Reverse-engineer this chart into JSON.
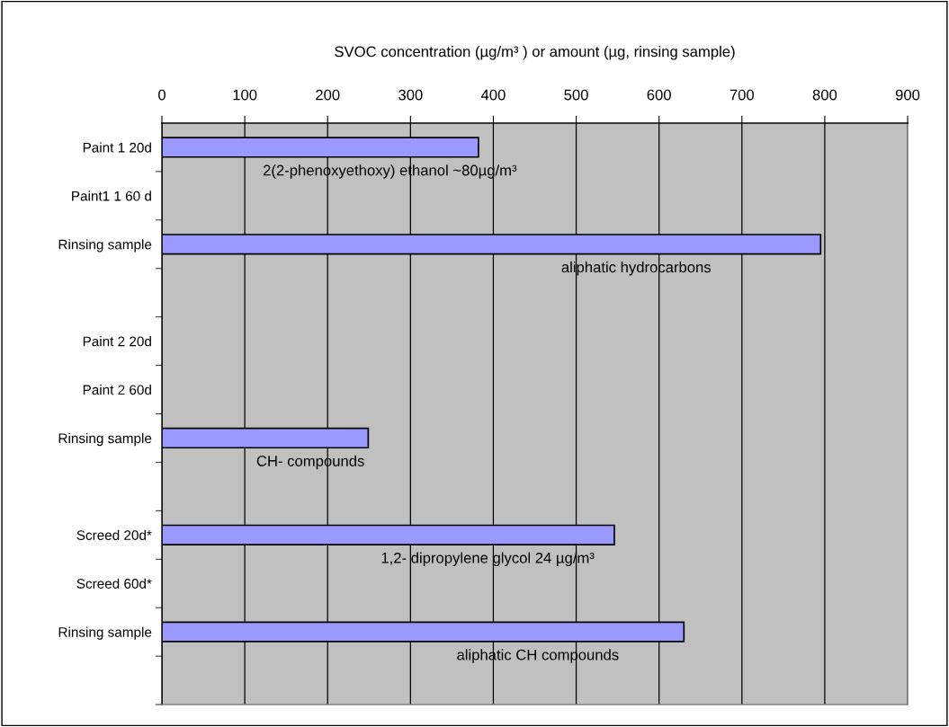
{
  "chart_data": {
    "type": "bar",
    "orientation": "horizontal",
    "xlabel": "SVOC concentration (µg/m³ ) or amount (µg, rinsing sample)",
    "categories": [
      "Paint 1 20d",
      "Paint1 1 60 d",
      "Rinsing sample",
      null,
      "Paint 2 20d",
      "Paint 2 60d",
      "Rinsing sample",
      null,
      "Screed 20d*",
      "Screed 60d*",
      "Rinsing sample",
      null
    ],
    "values": [
      382,
      null,
      795,
      null,
      null,
      null,
      249,
      null,
      546,
      null,
      630,
      null
    ],
    "color": "#9999ff",
    "xlim": [
      0,
      900
    ],
    "xticks": [
      0,
      100,
      200,
      300,
      400,
      500,
      600,
      700,
      800,
      900
    ],
    "grid": "x",
    "annotations": [
      "2(2-phenoxyethoxy) ethanol ~80µg/m³",
      "aliphatic hydrocarbons",
      "CH- compounds",
      "1,2- dipropylene glycol 24 µg/m³",
      "aliphatic CH compounds"
    ]
  }
}
